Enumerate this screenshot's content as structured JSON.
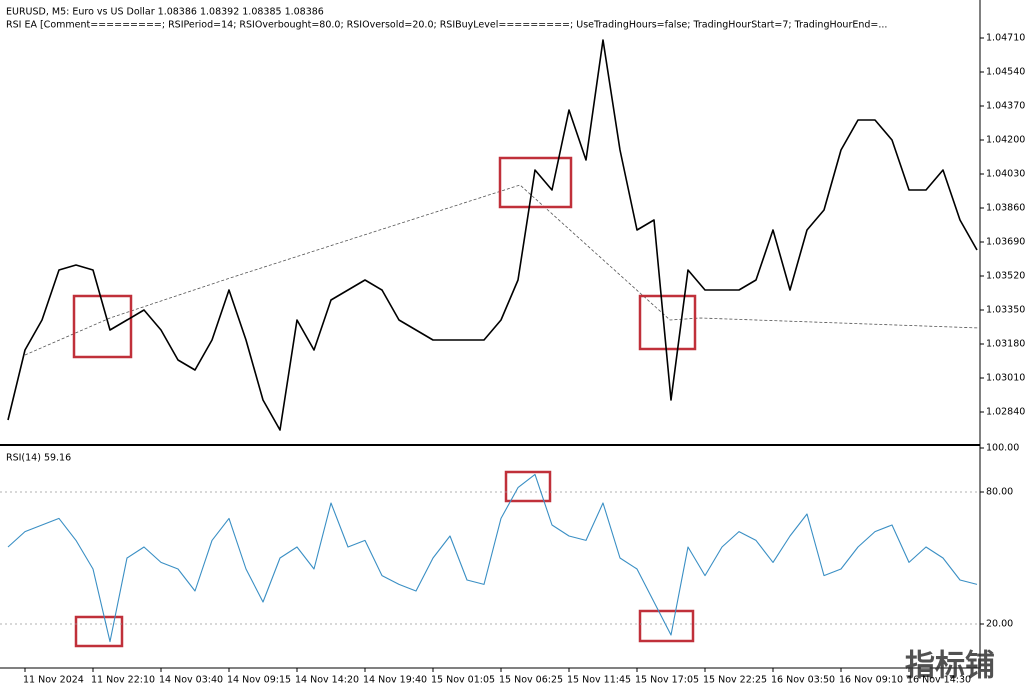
{
  "header": {
    "symbol_line": "EURUSD, M5: Euro vs US Dollar 1.08386 1.08392 1.08385 1.08386",
    "ea_line": "RSI EA [Comment=========; RSIPeriod=14; RSIOverbought=80.0; RSIOversold=20.0; RSIBuyLevel=========; UseTradingHours=false; TradingHourStart=7; TradingHourEnd=..."
  },
  "watermark": "指标铺",
  "chart_data": [
    {
      "type": "line",
      "color": "#000000",
      "xlim": [
        0,
        57
      ],
      "ylim": [
        1.02675,
        1.0486
      ],
      "yticks": [
        {
          "value": 1.0284,
          "label": "1.02840"
        },
        {
          "value": 1.0301,
          "label": "1.03010"
        },
        {
          "value": 1.0318,
          "label": "1.03180"
        },
        {
          "value": 1.0335,
          "label": "1.03350"
        },
        {
          "value": 1.0352,
          "label": "1.03520"
        },
        {
          "value": 1.0369,
          "label": "1.03690"
        },
        {
          "value": 1.0386,
          "label": "1.03860"
        },
        {
          "value": 1.0403,
          "label": "1.04030"
        },
        {
          "value": 1.042,
          "label": "1.04200"
        },
        {
          "value": 1.0437,
          "label": "1.04370"
        },
        {
          "value": 1.0454,
          "label": "1.04540"
        },
        {
          "value": 1.0471,
          "label": "1.04710"
        }
      ],
      "values": [
        1.028,
        1.0315,
        1.033,
        1.0355,
        1.03575,
        1.0355,
        1.0325,
        1.033,
        1.0335,
        1.0325,
        1.031,
        1.0305,
        1.032,
        1.0345,
        1.032,
        1.029,
        1.0275,
        1.033,
        1.0315,
        1.034,
        1.0345,
        1.035,
        1.0345,
        1.033,
        1.0325,
        1.032,
        1.032,
        1.032,
        1.032,
        1.033,
        1.035,
        1.0405,
        1.0395,
        1.0435,
        1.041,
        1.047,
        1.0415,
        1.0375,
        1.038,
        1.029,
        1.0355,
        1.0345,
        1.0345,
        1.0345,
        1.035,
        1.0375,
        1.0345,
        1.0375,
        1.0385,
        1.0415,
        1.043,
        1.043,
        1.042,
        1.0395,
        1.0395,
        1.0405,
        1.038,
        1.0365
      ]
    },
    {
      "type": "line",
      "title": "RSI(14) 59.16",
      "color": "#3a8fc4",
      "xlim": [
        0,
        57
      ],
      "ylim": [
        0,
        100
      ],
      "yticks": [
        {
          "value": 100,
          "label": "100.00"
        },
        {
          "value": 80,
          "label": "80.00"
        },
        {
          "value": 20,
          "label": "20.00"
        }
      ],
      "levels": [
        80,
        20
      ],
      "xticks": [
        {
          "value": 1,
          "label": "11 Nov 2024"
        },
        {
          "value": 5,
          "label": "11 Nov 22:10"
        },
        {
          "value": 9,
          "label": "14 Nov 03:40"
        },
        {
          "value": 13,
          "label": "14 Nov 09:15"
        },
        {
          "value": 17,
          "label": "14 Nov 14:20"
        },
        {
          "value": 21,
          "label": "14 Nov 19:40"
        },
        {
          "value": 25,
          "label": "15 Nov 01:05"
        },
        {
          "value": 29,
          "label": "15 Nov 06:25"
        },
        {
          "value": 33,
          "label": "15 Nov 11:45"
        },
        {
          "value": 37,
          "label": "15 Nov 17:05"
        },
        {
          "value": 41,
          "label": "15 Nov 22:25"
        },
        {
          "value": 45,
          "label": "16 Nov 03:50"
        },
        {
          "value": 49,
          "label": "16 Nov 09:10"
        },
        {
          "value": 53,
          "label": "16 Nov 14:30"
        }
      ],
      "values": [
        55,
        62,
        65,
        68,
        58,
        45,
        12,
        50,
        55,
        48,
        45,
        35,
        58,
        68,
        45,
        30,
        50,
        55,
        45,
        75,
        55,
        58,
        42,
        38,
        35,
        50,
        60,
        40,
        38,
        68,
        82,
        88,
        65,
        60,
        58,
        75,
        50,
        45,
        30,
        15,
        55,
        42,
        55,
        62,
        58,
        48,
        60,
        70,
        42,
        45,
        55,
        62,
        65,
        48,
        55,
        50,
        40,
        38
      ]
    }
  ]
}
